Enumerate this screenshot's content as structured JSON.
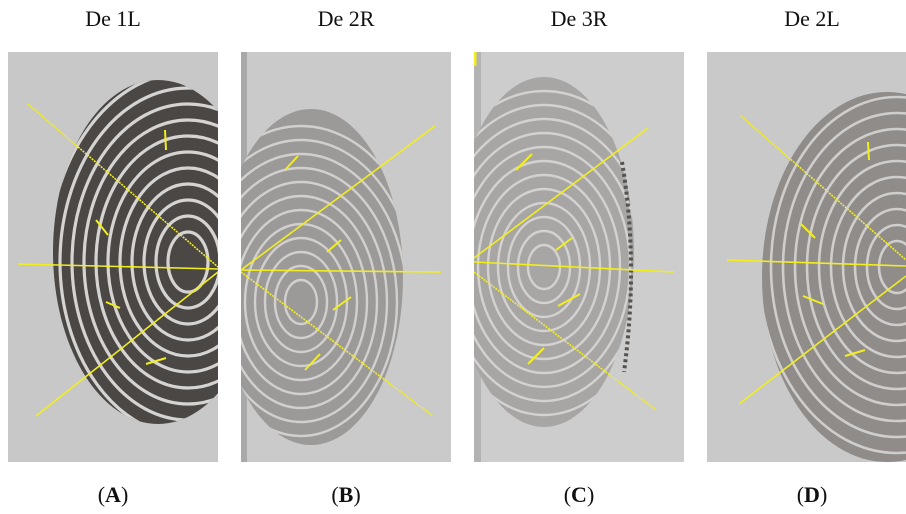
{
  "panels": [
    {
      "title": "De 1L",
      "letter": "A",
      "paren_open": "(",
      "paren_close": ")"
    },
    {
      "title": "De 2R",
      "letter": "B",
      "paren_open": "(",
      "paren_close": ")"
    },
    {
      "title": "De 3R",
      "letter": "C",
      "paren_open": "(",
      "paren_close": ")"
    },
    {
      "title": "De 2L",
      "letter": "D",
      "paren_open": "(",
      "paren_close": ")"
    }
  ],
  "colors": {
    "background": "#c9c9c9",
    "ridge_dark": "#2e2c2a",
    "ridge_light": "#6e6b68",
    "overlay_line": "#f2ee1e"
  },
  "overlay_lines": [
    "yellow-guide-line",
    "yellow-minutia-marker"
  ]
}
